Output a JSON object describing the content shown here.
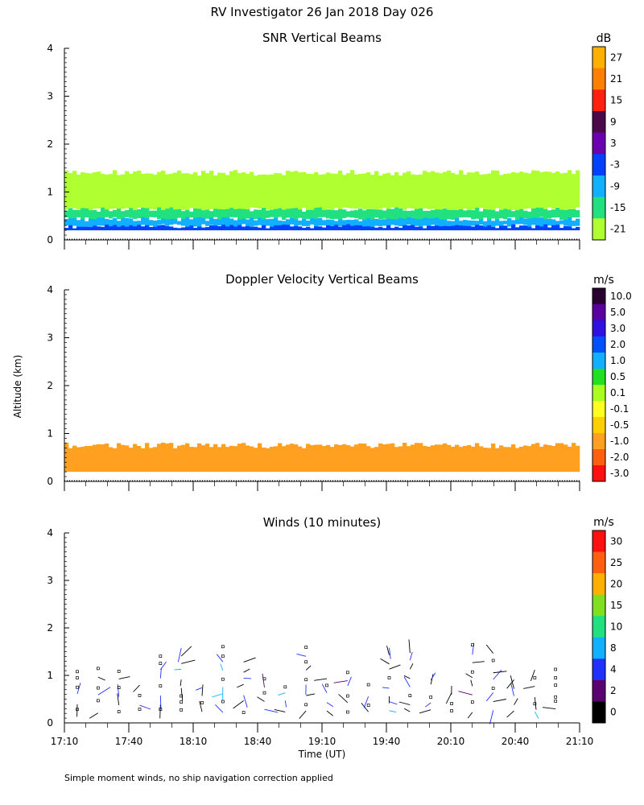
{
  "figure": {
    "title": "RV Investigator  26 Jan 2018 Day 026",
    "ylabel": "Altitude (km)",
    "xlabel": "Time (UT)",
    "footnote": "Simple moment winds, no ship navigation correction applied"
  },
  "chart_data": [
    {
      "type": "heatmap",
      "title": "SNR Vertical Beams",
      "ylim": [
        0,
        4
      ],
      "yticks": [
        "0",
        "1",
        "2",
        "3",
        "4"
      ],
      "x": [
        "17:10",
        "17:40",
        "18:10",
        "18:40",
        "19:10",
        "19:40",
        "20:10",
        "20:40",
        "21:10"
      ],
      "show_xtick_labels": false,
      "colorbar": {
        "unit": "dB",
        "labels": [
          "27",
          "21",
          "15",
          "9",
          "3",
          "-3",
          "-9",
          "-15",
          "-21"
        ],
        "colors": [
          "#ffb000",
          "#ff8000",
          "#ff2010",
          "#4a0a4a",
          "#6a00b0",
          "#0040ff",
          "#10b0ff",
          "#20e080",
          "#b0ff30"
        ]
      },
      "layers": [
        {
          "alt_from": 0.2,
          "alt_to": 0.3,
          "value": -3
        },
        {
          "alt_from": 0.3,
          "alt_to": 0.45,
          "value": -9
        },
        {
          "alt_from": 0.45,
          "alt_to": 0.65,
          "value": -15
        },
        {
          "alt_from": 0.65,
          "alt_to": 1.4,
          "value": -21
        }
      ]
    },
    {
      "type": "heatmap",
      "title": "Doppler Velocity Vertical Beams",
      "ylim": [
        0,
        4
      ],
      "yticks": [
        "0",
        "1",
        "2",
        "3",
        "4"
      ],
      "x": [
        "17:10",
        "17:40",
        "18:10",
        "18:40",
        "19:10",
        "19:40",
        "20:10",
        "20:40",
        "21:10"
      ],
      "show_xtick_labels": false,
      "colorbar": {
        "unit": "m/s",
        "labels": [
          "10.0",
          "5.0",
          "3.0",
          "2.0",
          "1.0",
          "0.5",
          "0.1",
          "-0.1",
          "-0.5",
          "-1.0",
          "-2.0",
          "-3.0"
        ],
        "colors": [
          "#2a0030",
          "#5a00a0",
          "#3010e0",
          "#0050ff",
          "#10b0ff",
          "#20e020",
          "#a8ff20",
          "#ffff20",
          "#ffd000",
          "#ffa020",
          "#ff6010",
          "#ff1010"
        ]
      },
      "layers": [
        {
          "alt_from": 0.2,
          "alt_to": 0.75,
          "value": -1.0
        }
      ]
    },
    {
      "type": "scatter",
      "title": "Winds (10 minutes)",
      "ylim": [
        0,
        4
      ],
      "yticks": [
        "0",
        "1",
        "2",
        "3",
        "4"
      ],
      "x": [
        "17:10",
        "17:40",
        "18:10",
        "18:40",
        "19:10",
        "19:40",
        "20:10",
        "20:40",
        "21:10"
      ],
      "show_xtick_labels": true,
      "colorbar": {
        "unit": "m/s",
        "labels": [
          "30",
          "25",
          "20",
          "15",
          "10",
          "8",
          "4",
          "2",
          "0"
        ],
        "colors": [
          "#ff1010",
          "#ff6010",
          "#ffb000",
          "#80e020",
          "#20e080",
          "#10b0ff",
          "#2030ff",
          "#5a0070",
          "#000000"
        ]
      }
    }
  ]
}
